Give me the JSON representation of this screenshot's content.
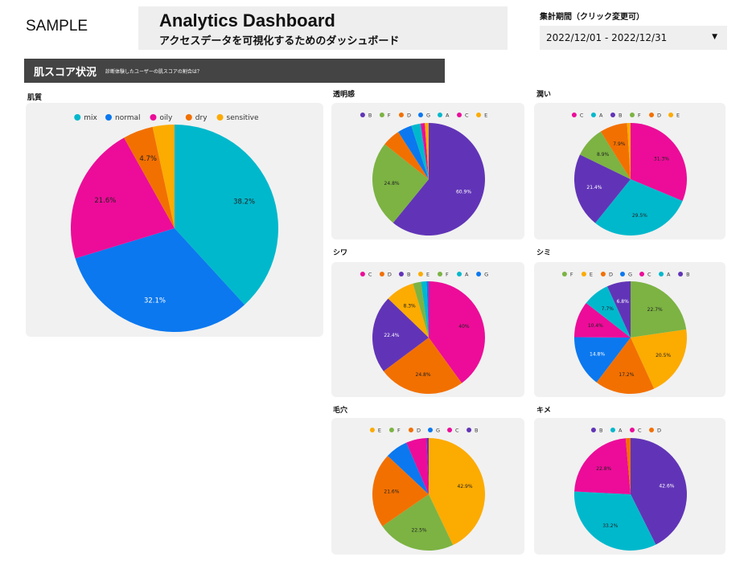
{
  "header": {
    "sample_label": "SAMPLE",
    "title": "Analytics Dashboard",
    "subtitle": "アクセスデータを可視化するためのダッシュボード",
    "period_label": "集計期間（クリック変更可）",
    "date_range": "2022/12/01 - 2022/12/31"
  },
  "section": {
    "title": "肌スコア状況",
    "subtitle": "診断体験したユーザーの肌スコアの割合は？"
  },
  "colors": {
    "mix": "#00b8cc",
    "normal": "#0b78ef",
    "oily": "#ec0c99",
    "dry": "#f27000",
    "sensitive": "#fcab00",
    "A": "#00b8cc",
    "B": "#6134b7",
    "C": "#ec0c99",
    "D": "#f27000",
    "E": "#fcab00",
    "F": "#7cb343",
    "G": "#0b78ef"
  },
  "chart_data": [
    {
      "id": "hada",
      "type": "pie",
      "title": "肌質",
      "categories": [
        "mix",
        "normal",
        "oily",
        "dry",
        "sensitive"
      ],
      "values": [
        38.2,
        32.1,
        21.6,
        4.7,
        3.4
      ],
      "data_labels": [
        "38.2%",
        "32.1%",
        "21.6%",
        "4.7%",
        ""
      ],
      "legend": "top"
    },
    {
      "id": "tomei",
      "type": "pie",
      "title": "透明感",
      "categories": [
        "B",
        "F",
        "D",
        "G",
        "A",
        "C",
        "E"
      ],
      "values": [
        60.9,
        24.8,
        5.2,
        4.1,
        2.7,
        1.2,
        1.1
      ],
      "data_labels": [
        "60.9%",
        "24.8%",
        "",
        "",
        "",
        "",
        ""
      ],
      "legend": "top"
    },
    {
      "id": "uruoi",
      "type": "pie",
      "title": "潤い",
      "categories": [
        "C",
        "A",
        "B",
        "F",
        "D",
        "E"
      ],
      "values": [
        31.3,
        29.5,
        21.4,
        8.9,
        7.9,
        1.0
      ],
      "data_labels": [
        "31.3%",
        "29.5%",
        "21.4%",
        "8.9%",
        "7.9%",
        ""
      ],
      "legend": "top"
    },
    {
      "id": "shiwa",
      "type": "pie",
      "title": "シワ",
      "categories": [
        "C",
        "D",
        "B",
        "E",
        "F",
        "A",
        "G"
      ],
      "values": [
        40.0,
        24.8,
        22.4,
        8.3,
        2.3,
        1.6,
        0.6
      ],
      "data_labels": [
        "40%",
        "24.8%",
        "22.4%",
        "8.3%",
        "",
        "",
        ""
      ],
      "legend": "top"
    },
    {
      "id": "shimi",
      "type": "pie",
      "title": "シミ",
      "categories": [
        "F",
        "E",
        "D",
        "G",
        "C",
        "A",
        "B"
      ],
      "values": [
        22.7,
        20.5,
        17.2,
        14.8,
        10.4,
        7.7,
        6.8
      ],
      "data_labels": [
        "22.7%",
        "20.5%",
        "17.2%",
        "14.8%",
        "10.4%",
        "7.7%",
        "6.8%"
      ],
      "legend": "top"
    },
    {
      "id": "keana",
      "type": "pie",
      "title": "毛穴",
      "categories": [
        "E",
        "F",
        "D",
        "G",
        "C",
        "B"
      ],
      "values": [
        42.9,
        22.5,
        21.6,
        6.5,
        5.9,
        0.6
      ],
      "data_labels": [
        "42.9%",
        "22.5%",
        "21.6%",
        "",
        "",
        ""
      ],
      "legend": "top"
    },
    {
      "id": "kime",
      "type": "pie",
      "title": "キメ",
      "categories": [
        "B",
        "A",
        "C",
        "D"
      ],
      "values": [
        42.6,
        33.2,
        22.8,
        1.4
      ],
      "data_labels": [
        "42.6%",
        "33.2%",
        "22.8%",
        ""
      ],
      "legend": "top"
    }
  ]
}
